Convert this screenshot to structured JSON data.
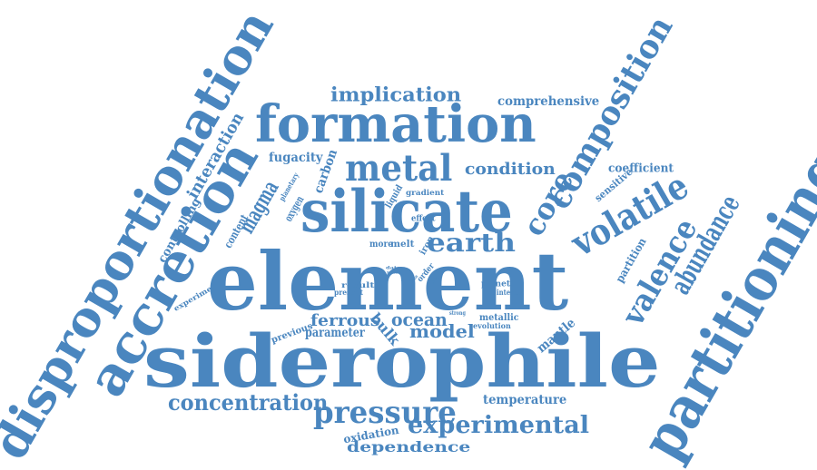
{
  "colors": {
    "text": "#4a86bf",
    "background": "#ffffff"
  },
  "words": [
    {
      "text": "disproportionation",
      "orientation": "rotated-up"
    },
    {
      "text": "accretion",
      "orientation": "rotated-up"
    },
    {
      "text": "interaction",
      "orientation": "rotated-up"
    },
    {
      "text": "controlling",
      "orientation": "rotated-up"
    },
    {
      "text": "experiment",
      "orientation": "rotated-up"
    },
    {
      "text": "implication",
      "orientation": "horizontal"
    },
    {
      "text": "comprehensive",
      "orientation": "horizontal"
    },
    {
      "text": "formation",
      "orientation": "horizontal"
    },
    {
      "text": "fugacity",
      "orientation": "horizontal"
    },
    {
      "text": "metal",
      "orientation": "horizontal"
    },
    {
      "text": "condition",
      "orientation": "horizontal"
    },
    {
      "text": "coefficient",
      "orientation": "horizontal"
    },
    {
      "text": "composition",
      "orientation": "rotated-up"
    },
    {
      "text": "core",
      "orientation": "rotated-up"
    },
    {
      "text": "silicate",
      "orientation": "horizontal"
    },
    {
      "text": "volatile",
      "orientation": "rotated-up"
    },
    {
      "text": "sensitive",
      "orientation": "rotated-up"
    },
    {
      "text": "magma",
      "orientation": "rotated-up"
    },
    {
      "text": "carbon",
      "orientation": "rotated-up"
    },
    {
      "text": "oxygen",
      "orientation": "rotated-up"
    },
    {
      "text": "planetary",
      "orientation": "rotated-up"
    },
    {
      "text": "content",
      "orientation": "rotated-up"
    },
    {
      "text": "liquid",
      "orientation": "rotated-up"
    },
    {
      "text": "gradient",
      "orientation": "horizontal"
    },
    {
      "text": "effect",
      "orientation": "horizontal"
    },
    {
      "text": "earth",
      "orientation": "horizontal"
    },
    {
      "text": "more",
      "orientation": "horizontal"
    },
    {
      "text": "melt",
      "orientation": "horizontal"
    },
    {
      "text": "iron",
      "orientation": "rotated-up"
    },
    {
      "text": "element",
      "orientation": "horizontal"
    },
    {
      "text": "valence",
      "orientation": "rotated-up"
    },
    {
      "text": "abundance",
      "orientation": "rotated-up"
    },
    {
      "text": "partition",
      "orientation": "rotated-up"
    },
    {
      "text": "partitioning",
      "orientation": "rotated-up"
    },
    {
      "text": "data",
      "orientation": "horizontal"
    },
    {
      "text": "state",
      "orientation": "horizontal"
    },
    {
      "text": "order",
      "orientation": "rotated-up"
    },
    {
      "text": "role",
      "orientation": "rotated-up"
    },
    {
      "text": "bonus",
      "orientation": "rotated-up"
    },
    {
      "text": "result",
      "orientation": "horizontal"
    },
    {
      "text": "present",
      "orientation": "horizontal"
    },
    {
      "text": "planet",
      "orientation": "horizontal"
    },
    {
      "text": "interest",
      "orientation": "horizontal"
    },
    {
      "text": "ferrous",
      "orientation": "horizontal"
    },
    {
      "text": "ocean",
      "orientation": "horizontal"
    },
    {
      "text": "strong",
      "orientation": "horizontal"
    },
    {
      "text": "metallic",
      "orientation": "horizontal"
    },
    {
      "text": "evolution",
      "orientation": "horizontal"
    },
    {
      "text": "mantle",
      "orientation": "horizontal"
    },
    {
      "text": "previous",
      "orientation": "rotated-up"
    },
    {
      "text": "parameter",
      "orientation": "horizontal"
    },
    {
      "text": "bulk",
      "orientation": "rotated-down"
    },
    {
      "text": "model",
      "orientation": "horizontal"
    },
    {
      "text": "siderophile",
      "orientation": "horizontal"
    },
    {
      "text": "concentration",
      "orientation": "horizontal"
    },
    {
      "text": "pressure",
      "orientation": "horizontal"
    },
    {
      "text": "temperature",
      "orientation": "horizontal"
    },
    {
      "text": "experimental",
      "orientation": "horizontal"
    },
    {
      "text": "oxidation",
      "orientation": "horizontal"
    },
    {
      "text": "dependence",
      "orientation": "horizontal"
    }
  ]
}
